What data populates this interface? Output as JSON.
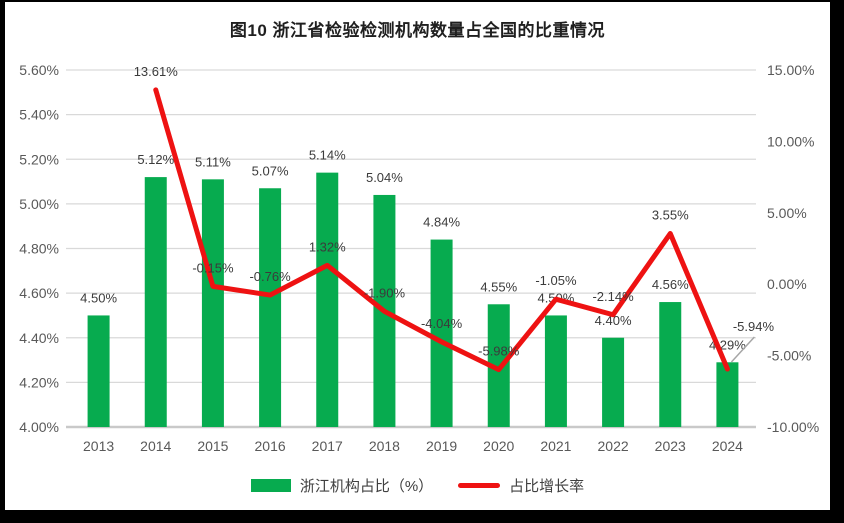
{
  "title": "图10  浙江省检验检测机构数量占全国的比重情况",
  "legend": {
    "bar_label": "浙江机构占比（%）",
    "line_label": "占比增长率"
  },
  "colors": {
    "bar": "#07AB4F",
    "line": "#EE1212",
    "grid": "#D9D9D9",
    "axis_line": "#C9C9C9",
    "tick_text": "#595959",
    "data_label_text": "#3B3B3B",
    "leader_line": "#A6A6A6",
    "frame_border": "#000000",
    "background": "#FFFFFF"
  },
  "chart_data": {
    "type": "bar+line combo",
    "title": "图10  浙江省检验检测机构数量占全国的比重情况",
    "categories": [
      "2013",
      "2014",
      "2015",
      "2016",
      "2017",
      "2018",
      "2019",
      "2020",
      "2021",
      "2022",
      "2023",
      "2024"
    ],
    "series": [
      {
        "name": "浙江机构占比（%）",
        "type": "bar",
        "axis": "left",
        "color": "#07AB4F",
        "values": [
          4.5,
          5.12,
          5.11,
          5.07,
          5.14,
          5.04,
          4.84,
          4.55,
          4.5,
          4.4,
          4.56,
          4.29
        ],
        "labels": [
          "4.50%",
          "5.12%",
          "5.11%",
          "5.07%",
          "5.14%",
          "5.04%",
          "4.84%",
          "4.55%",
          "4.50%",
          "4.40%",
          "4.56%",
          "4.29%"
        ]
      },
      {
        "name": "占比增长率",
        "type": "line",
        "axis": "right",
        "color": "#EE1212",
        "values": [
          null,
          13.61,
          -0.15,
          -0.76,
          1.32,
          -1.9,
          -4.04,
          -5.98,
          -1.05,
          -2.14,
          3.55,
          -5.94
        ],
        "labels": [
          null,
          "13.61%",
          "-0.15%",
          "-0.76%",
          "1.32%",
          "-1.90%",
          "-4.04%",
          "-5.98%",
          "-1.05%",
          "-2.14%",
          "3.55%",
          "-5.94%"
        ],
        "last_label_has_leader_line": true
      }
    ],
    "left_axis": {
      "min": 4.0,
      "max": 5.6,
      "ticks": [
        "4.00%",
        "4.20%",
        "4.40%",
        "4.60%",
        "4.80%",
        "5.00%",
        "5.20%",
        "5.40%",
        "5.60%"
      ]
    },
    "right_axis": {
      "min": -10.0,
      "max": 15.0,
      "ticks": [
        "-10.00%",
        "-5.00%",
        "0.00%",
        "5.00%",
        "10.00%",
        "15.00%"
      ]
    },
    "grid": true,
    "vertical_grid": false,
    "legend_position": "bottom"
  }
}
